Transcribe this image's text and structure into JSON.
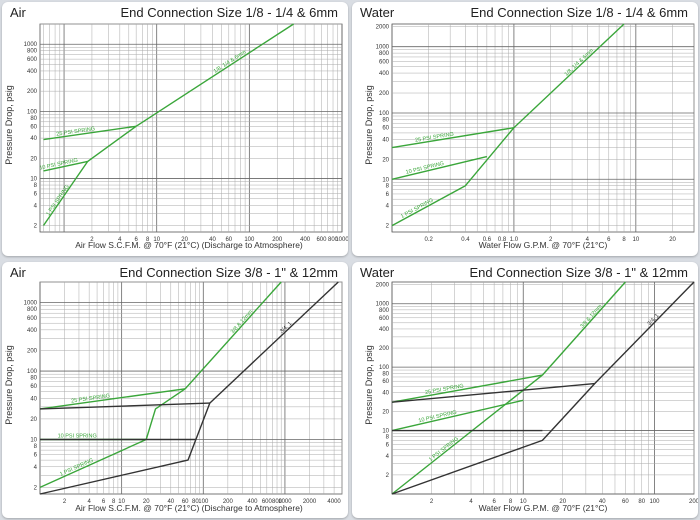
{
  "chart_data": [
    {
      "type": "line",
      "medium": "Air",
      "title": "End Connection Size 1/8 - 1/4 & 6mm",
      "ylabel": "Pressure Drop, psig",
      "xlabel": "Air Flow S.C.F.M. @ 70°F (21°C) (Discharge to Atmosphere)",
      "xscale": "log",
      "yscale": "log",
      "xlim": [
        0.55,
        1000
      ],
      "ylim": [
        1.6,
        2000
      ],
      "x_ticks": [
        "2",
        "4",
        "6",
        "8",
        "10",
        "20",
        "40",
        "60",
        "100",
        "200",
        "400",
        "600",
        "800",
        "1000"
      ],
      "y_ticks": [
        "2",
        "4",
        "6",
        "8",
        "10",
        "20",
        "40",
        "60",
        "80",
        "100",
        "200",
        "400",
        "600",
        "800",
        "1000"
      ],
      "series": [
        {
          "name": "1 PSI SPRING",
          "color": "#3aa63a",
          "points": [
            [
              0.6,
              2
            ],
            [
              1.8,
              18
            ]
          ]
        },
        {
          "name": "10 PSI SPRING",
          "color": "#3aa63a",
          "points": [
            [
              0.6,
              13
            ],
            [
              1.8,
              18
            ],
            [
              6,
              60
            ]
          ]
        },
        {
          "name": "25 PSI SPRING",
          "color": "#3aa63a",
          "points": [
            [
              0.6,
              38
            ],
            [
              6,
              60
            ]
          ]
        },
        {
          "name": "1/8, 1/4 & 6mm",
          "color": "#3aa63a",
          "points": [
            [
              6,
              60
            ],
            [
              300,
              2000
            ]
          ]
        }
      ]
    },
    {
      "type": "line",
      "medium": "Water",
      "title": "End Connection Size 1/8 - 1/4 & 6mm",
      "ylabel": "Pressure Drop, psig",
      "xlabel": "Water Flow G.P.M. @ 70°F (21°C)",
      "xscale": "log",
      "yscale": "log",
      "xlim": [
        0.1,
        30
      ],
      "ylim": [
        1.6,
        2200
      ],
      "x_ticks": [
        "0.2",
        "0.4",
        "0.6",
        "0.8",
        "1.0",
        "2",
        "4",
        "6",
        "8",
        "10",
        "20"
      ],
      "y_ticks": [
        "2",
        "4",
        "6",
        "8",
        "10",
        "20",
        "40",
        "60",
        "80",
        "100",
        "200",
        "400",
        "600",
        "800",
        "1000",
        "2000"
      ],
      "series": [
        {
          "name": "1 PSI SPRING",
          "color": "#3aa63a",
          "points": [
            [
              0.1,
              2
            ],
            [
              0.4,
              8
            ],
            [
              1.0,
              60
            ]
          ]
        },
        {
          "name": "10 PSI SPRING",
          "color": "#3aa63a",
          "points": [
            [
              0.1,
              10
            ],
            [
              0.6,
              22
            ]
          ]
        },
        {
          "name": "25 PSI SPRING",
          "color": "#3aa63a",
          "points": [
            [
              0.1,
              30
            ],
            [
              1.0,
              60
            ]
          ]
        },
        {
          "name": "1/8, 1/4 & 6mm",
          "color": "#3aa63a",
          "points": [
            [
              1.0,
              60
            ],
            [
              8,
              2200
            ]
          ]
        }
      ]
    },
    {
      "type": "line",
      "medium": "Air",
      "title": "End Connection Size 3/8 - 1\" & 12mm",
      "ylabel": "Pressure Drop, psig",
      "xlabel": "Air Flow S.C.F.M. @ 70°F (21°C) (Discharge to Atmosphere)",
      "xscale": "log",
      "yscale": "log",
      "xlim": [
        1,
        5000
      ],
      "ylim": [
        1.6,
        2000
      ],
      "x_ticks": [
        "2",
        "4",
        "6",
        "8",
        "10",
        "20",
        "40",
        "60",
        "80",
        "100",
        "200",
        "400",
        "600",
        "800",
        "1000",
        "2000",
        "4000"
      ],
      "y_ticks": [
        "2",
        "4",
        "6",
        "8",
        "10",
        "20",
        "40",
        "60",
        "80",
        "100",
        "200",
        "400",
        "600",
        "800",
        "1000"
      ],
      "series": [
        {
          "name": "1 PSI SPRING",
          "color": "#3aa63a",
          "points": [
            [
              1,
              2
            ],
            [
              20,
              10
            ],
            [
              26,
              28
            ],
            [
              60,
              55
            ]
          ]
        },
        {
          "name": "10 PSI SPRING",
          "color": "#3aa63a",
          "points": [
            [
              1,
              10
            ],
            [
              20,
              10
            ]
          ]
        },
        {
          "name": "25 PSI SPRING",
          "color": "#3aa63a",
          "points": [
            [
              1,
              28
            ],
            [
              60,
              55
            ]
          ]
        },
        {
          "name": "3/8 & 12mm",
          "color": "#3aa63a",
          "points": [
            [
              60,
              55
            ],
            [
              900,
              2000
            ]
          ]
        },
        {
          "name": "3/4, 1",
          "color": "#333333",
          "points": [
            [
              1,
              1.6
            ],
            [
              65,
              5
            ],
            [
              120,
              34
            ],
            [
              4500,
              2000
            ]
          ]
        },
        {
          "name": "1 PSI (3/4, 1)",
          "color": "#333333",
          "points": [
            [
              1,
              10
            ],
            [
              80,
              10
            ]
          ]
        },
        {
          "name": "25 PSI (3/4, 1)",
          "color": "#333333",
          "points": [
            [
              1,
              28
            ],
            [
              120,
              34
            ]
          ]
        }
      ]
    },
    {
      "type": "line",
      "medium": "Water",
      "title": "End Connection Size 3/8 - 1\" & 12mm",
      "ylabel": "Pressure Drop, psig",
      "xlabel": "Water Flow G.P.M. @ 70°F (21°C)",
      "xscale": "log",
      "yscale": "log",
      "xlim": [
        1,
        200
      ],
      "ylim": [
        1,
        2200
      ],
      "x_ticks": [
        "2",
        "4",
        "6",
        "8",
        "10",
        "20",
        "40",
        "60",
        "80",
        "100",
        "200"
      ],
      "y_ticks": [
        "2",
        "4",
        "6",
        "8",
        "10",
        "20",
        "40",
        "60",
        "80",
        "100",
        "200",
        "400",
        "600",
        "800",
        "1000",
        "2000"
      ],
      "series": [
        {
          "name": "1 PSI SPRING",
          "color": "#3aa63a",
          "points": [
            [
              1,
              1
            ],
            [
              14,
              75
            ]
          ]
        },
        {
          "name": "10 PSI SPRING",
          "color": "#3aa63a",
          "points": [
            [
              1,
              10
            ],
            [
              10,
              30
            ]
          ]
        },
        {
          "name": "25 PSI SPRING",
          "color": "#3aa63a",
          "points": [
            [
              1,
              28
            ],
            [
              14,
              75
            ]
          ]
        },
        {
          "name": "3/8 & 12mm",
          "color": "#3aa63a",
          "points": [
            [
              14,
              75
            ],
            [
              60,
              2200
            ]
          ]
        },
        {
          "name": "3/4, 1",
          "color": "#333333",
          "points": [
            [
              1,
              1
            ],
            [
              14,
              7
            ],
            [
              35,
              55
            ],
            [
              200,
              2200
            ]
          ]
        },
        {
          "name": "10 PSI (3/4, 1)",
          "color": "#333333",
          "points": [
            [
              1,
              10
            ],
            [
              14,
              10
            ]
          ]
        },
        {
          "name": "25 PSI (3/4, 1)",
          "color": "#333333",
          "points": [
            [
              1,
              28
            ],
            [
              35,
              55
            ]
          ]
        }
      ]
    }
  ]
}
